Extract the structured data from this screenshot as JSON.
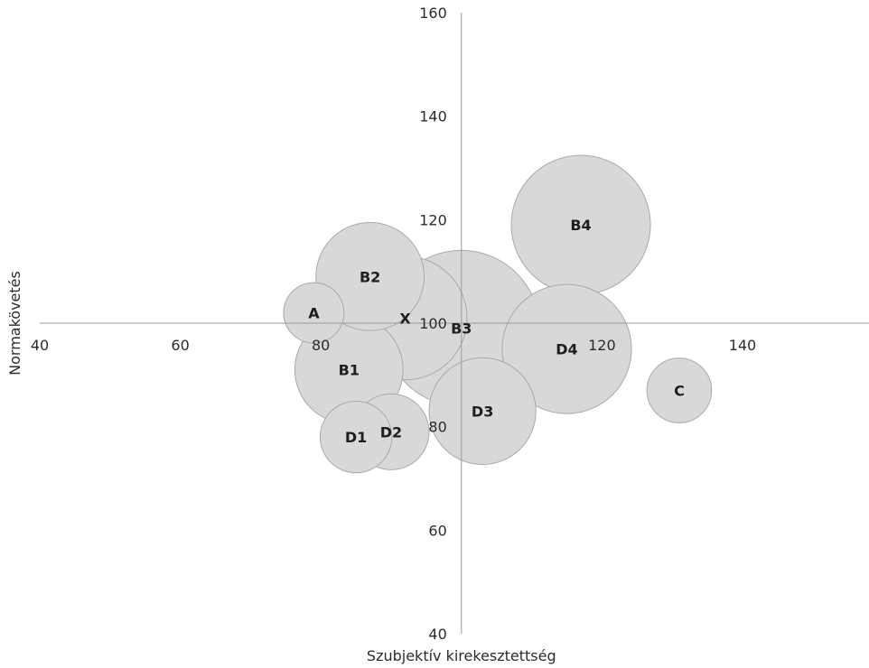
{
  "chart_data": {
    "type": "bubble",
    "title": "",
    "xlabel": "Szubjektív kirekesztettség",
    "ylabel": "Normakövetés",
    "xlim": [
      40,
      158
    ],
    "ylim": [
      40,
      160
    ],
    "x_ticks": [
      40,
      60,
      80,
      100,
      120,
      140
    ],
    "y_ticks": [
      40,
      60,
      80,
      100,
      120,
      140,
      160
    ],
    "axis_cross": {
      "x": 100,
      "y": 100
    },
    "grid": false,
    "colors": {
      "bubble_fill": "#d7d8da",
      "bubble_stroke": "#a9a9a9",
      "axis": "#9a9a9a",
      "text": "#1e1e1e"
    },
    "points": [
      {
        "label": "X",
        "x": 92,
        "y": 101,
        "r": 8.8
      },
      {
        "label": "A",
        "x": 79,
        "y": 102,
        "r": 4.3
      },
      {
        "label": "B1",
        "x": 84,
        "y": 91,
        "r": 7.7
      },
      {
        "label": "B2",
        "x": 87,
        "y": 109,
        "r": 7.7
      },
      {
        "label": "B3",
        "x": 100,
        "y": 99,
        "r": 11.1
      },
      {
        "label": "B4",
        "x": 117,
        "y": 119,
        "r": 9.9
      },
      {
        "label": "C",
        "x": 131,
        "y": 87,
        "r": 4.6
      },
      {
        "label": "D1",
        "x": 85,
        "y": 78,
        "r": 5.1
      },
      {
        "label": "D2",
        "x": 90,
        "y": 79,
        "r": 5.4
      },
      {
        "label": "D3",
        "x": 103,
        "y": 83,
        "r": 7.6
      },
      {
        "label": "D4",
        "x": 115,
        "y": 95,
        "r": 9.2
      }
    ]
  }
}
